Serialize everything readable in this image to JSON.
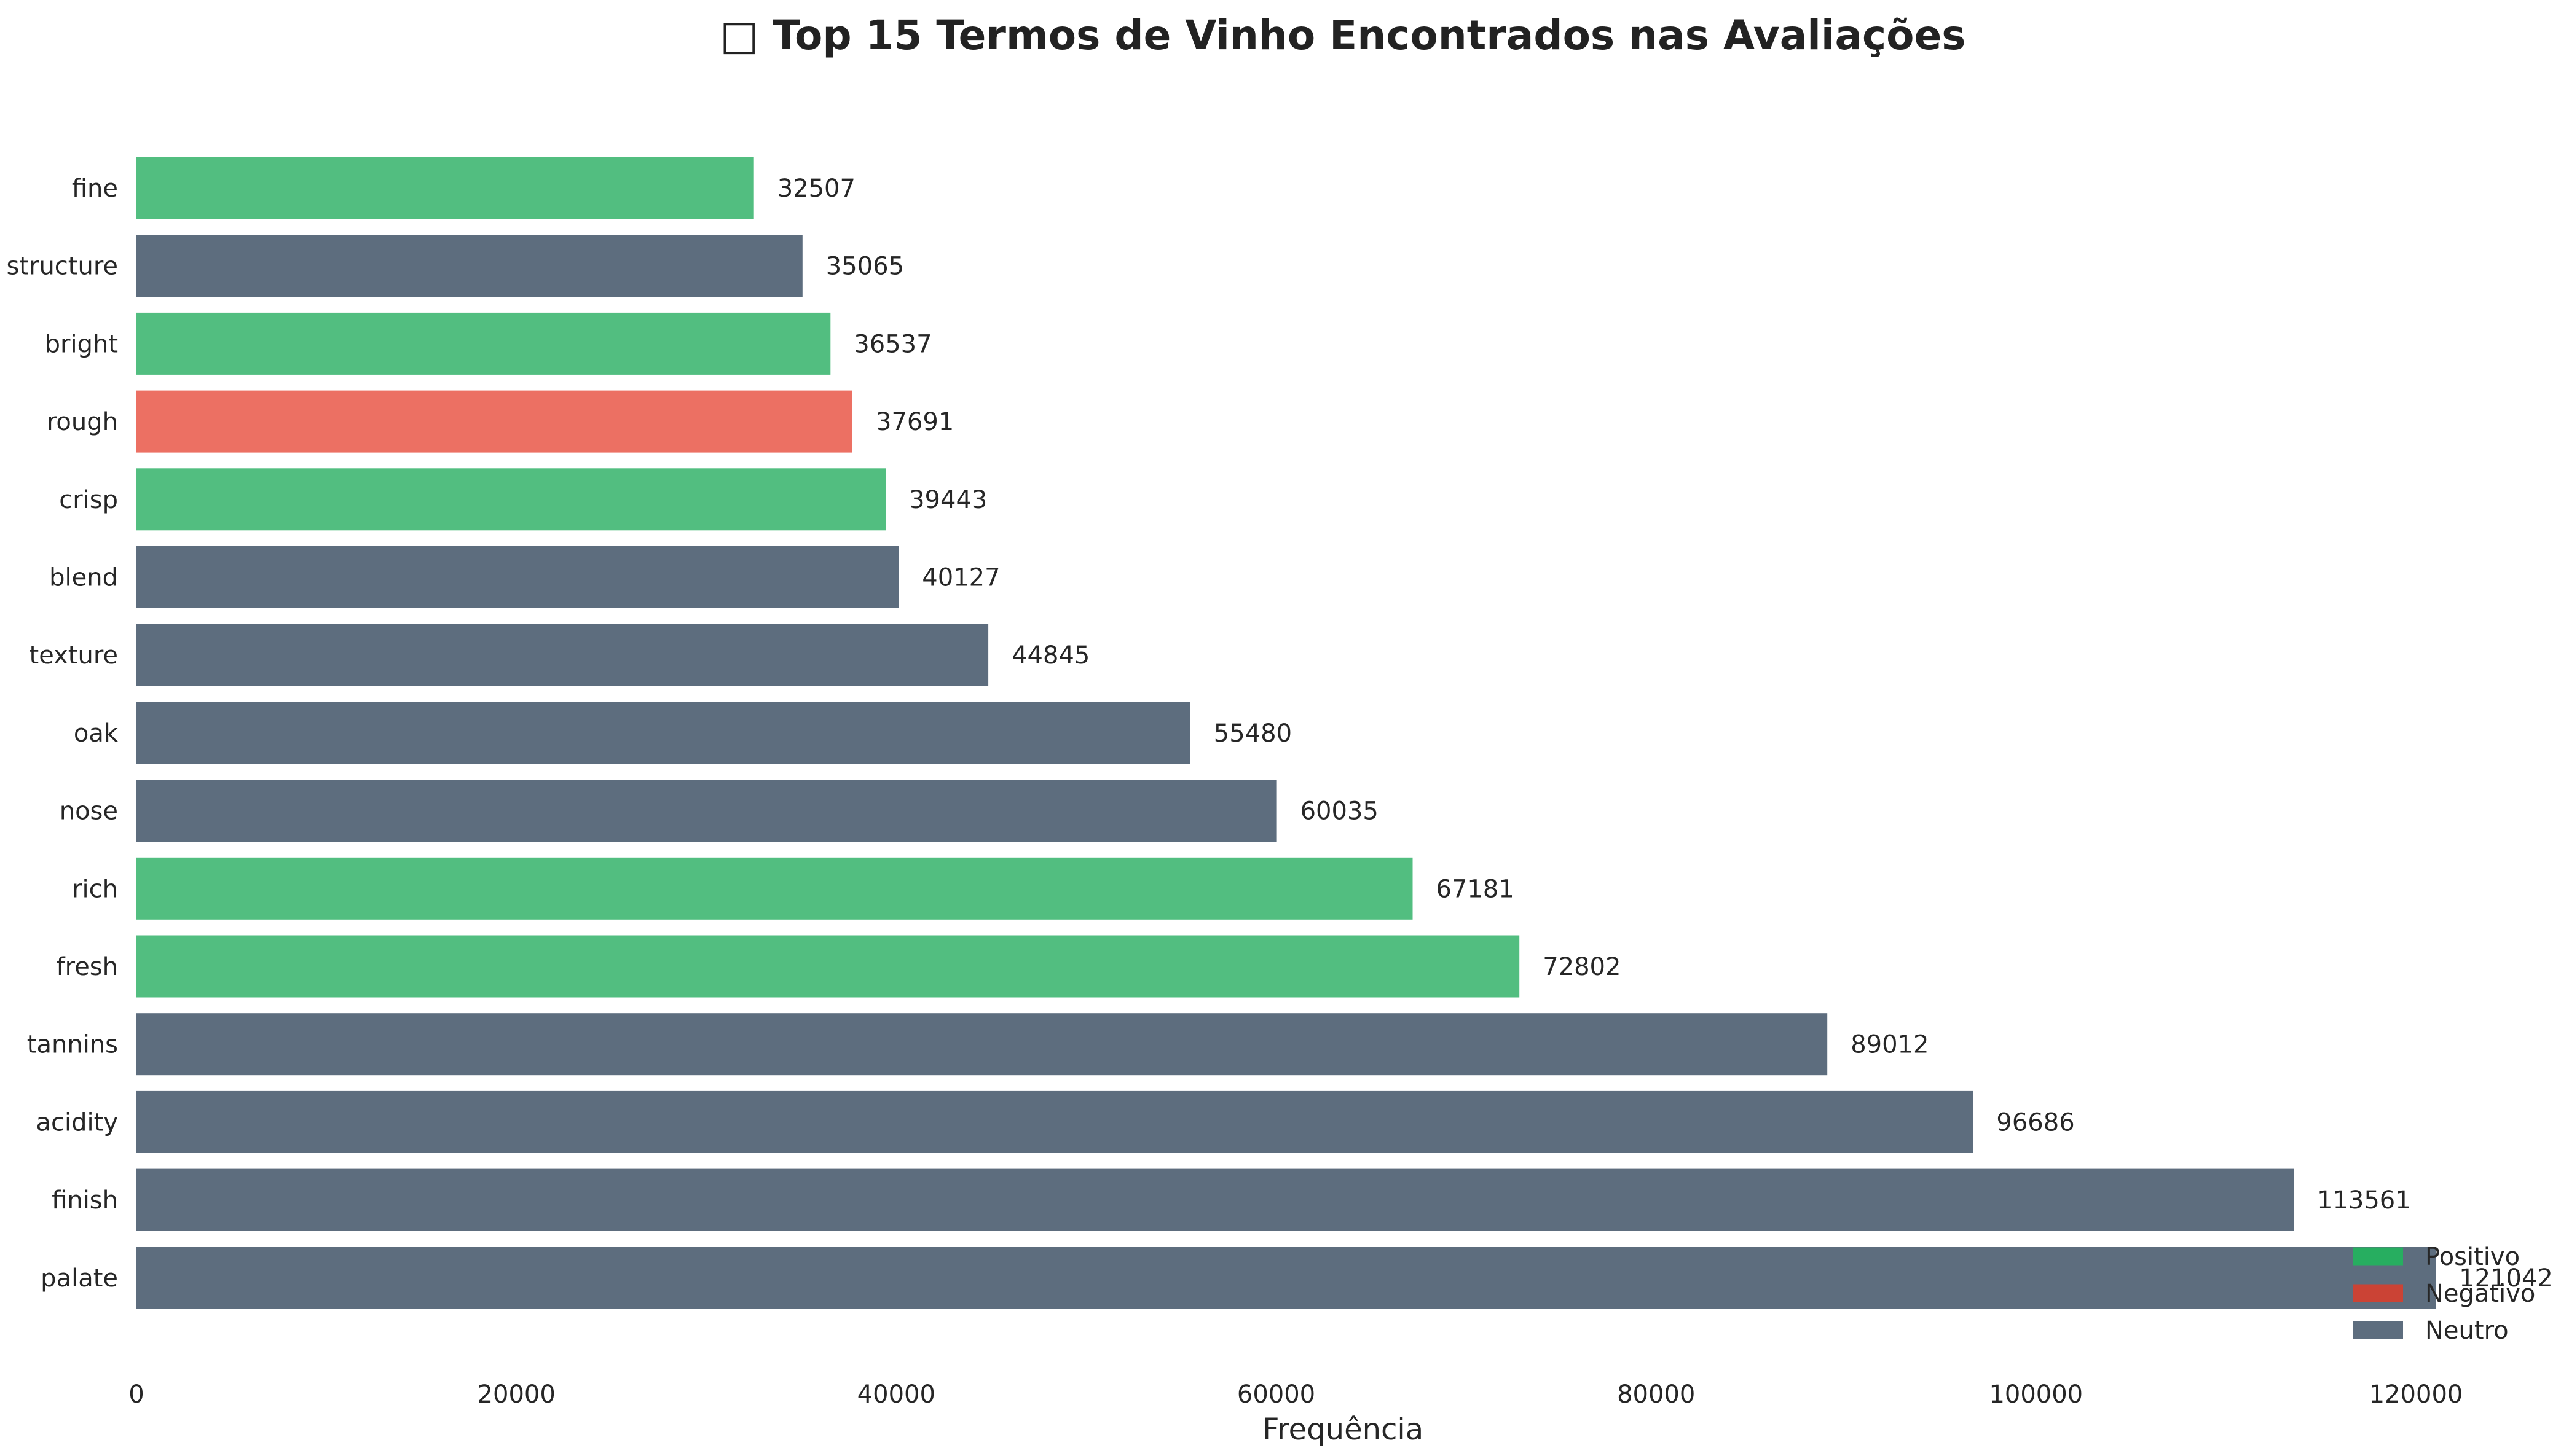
{
  "chart_data": {
    "type": "bar",
    "orientation": "horizontal",
    "title": "□ Top 15 Termos de Vinho Encontrados nas Avaliações",
    "xlabel": "Frequência",
    "ylabel": "",
    "xlim": [
      0,
      125000
    ],
    "xticks": [
      "0",
      "20000",
      "40000",
      "60000",
      "80000",
      "100000",
      "120000"
    ],
    "grid": false,
    "legend_position": "bottom-right",
    "colors": {
      "Positivo": "#52be80",
      "Negativo": "#ec7063",
      "Neutro": "#5d6d7e"
    },
    "legend_colors": {
      "Positivo": "#27ae60",
      "Negativo": "#cb4335",
      "Neutro": "#5d6d7e"
    },
    "legend": [
      {
        "name": "Positivo"
      },
      {
        "name": "Negativo"
      },
      {
        "name": "Neutro"
      }
    ],
    "bars": [
      {
        "category": "fine",
        "value": 32507,
        "label": "32507",
        "sentiment": "Positivo"
      },
      {
        "category": "structure",
        "value": 35065,
        "label": "35065",
        "sentiment": "Neutro"
      },
      {
        "category": "bright",
        "value": 36537,
        "label": "36537",
        "sentiment": "Positivo"
      },
      {
        "category": "rough",
        "value": 37691,
        "label": "37691",
        "sentiment": "Negativo"
      },
      {
        "category": "crisp",
        "value": 39443,
        "label": "39443",
        "sentiment": "Positivo"
      },
      {
        "category": "blend",
        "value": 40127,
        "label": "40127",
        "sentiment": "Neutro"
      },
      {
        "category": "texture",
        "value": 44845,
        "label": "44845",
        "sentiment": "Neutro"
      },
      {
        "category": "oak",
        "value": 55480,
        "label": "55480",
        "sentiment": "Neutro"
      },
      {
        "category": "nose",
        "value": 60035,
        "label": "60035",
        "sentiment": "Neutro"
      },
      {
        "category": "rich",
        "value": 67181,
        "label": "67181",
        "sentiment": "Positivo"
      },
      {
        "category": "fresh",
        "value": 72802,
        "label": "72802",
        "sentiment": "Positivo"
      },
      {
        "category": "tannins",
        "value": 89012,
        "label": "89012",
        "sentiment": "Neutro"
      },
      {
        "category": "acidity",
        "value": 96686,
        "label": "96686",
        "sentiment": "Neutro"
      },
      {
        "category": "finish",
        "value": 113561,
        "label": "113561",
        "sentiment": "Neutro"
      },
      {
        "category": "palate",
        "value": 121042,
        "label": "121042",
        "sentiment": "Neutro"
      }
    ]
  }
}
